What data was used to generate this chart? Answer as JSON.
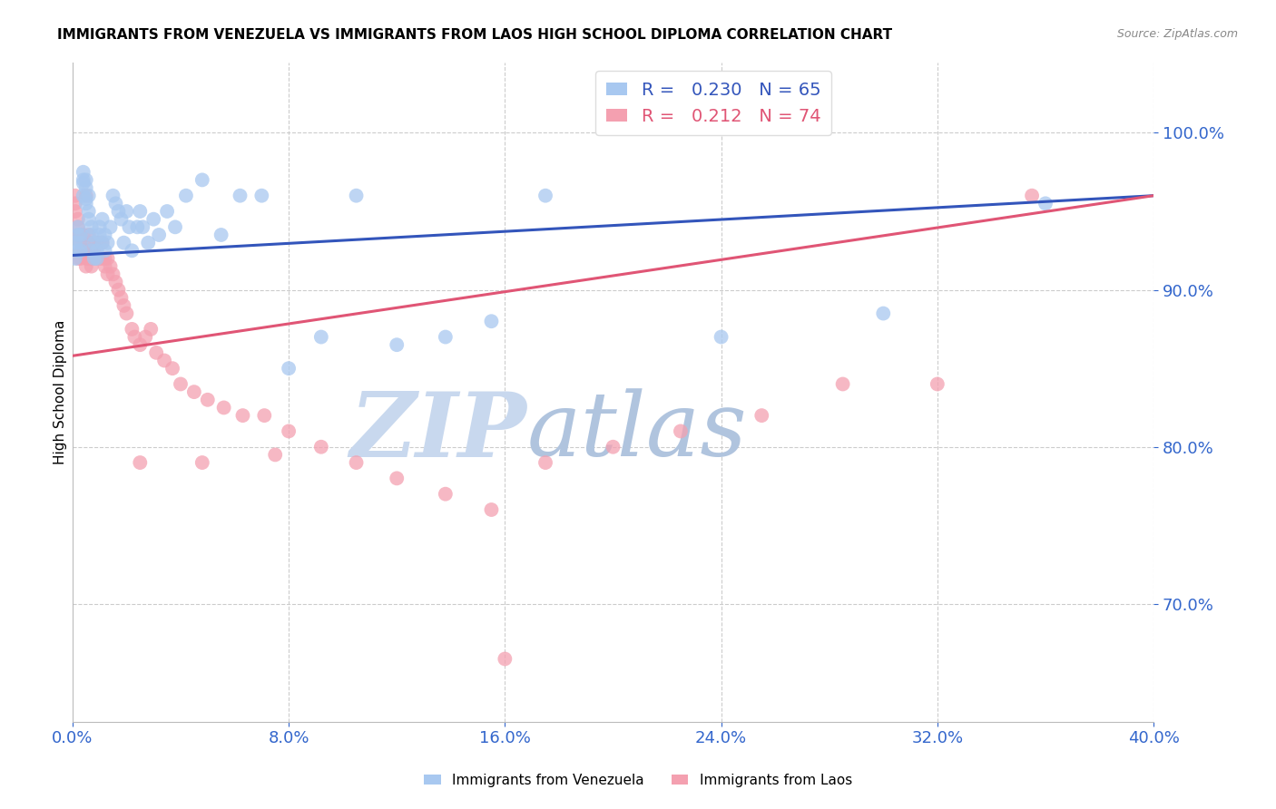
{
  "title": "IMMIGRANTS FROM VENEZUELA VS IMMIGRANTS FROM LAOS HIGH SCHOOL DIPLOMA CORRELATION CHART",
  "source": "Source: ZipAtlas.com",
  "ylabel": "High School Diploma",
  "legend_entries": [
    "Immigrants from Venezuela",
    "Immigrants from Laos"
  ],
  "r_venezuela": 0.23,
  "n_venezuela": 65,
  "r_laos": 0.212,
  "n_laos": 74,
  "xlim": [
    0.0,
    0.4
  ],
  "ylim": [
    0.625,
    1.045
  ],
  "xticks": [
    0.0,
    0.08,
    0.16,
    0.24,
    0.32,
    0.4
  ],
  "yticks_right": [
    0.7,
    0.8,
    0.9,
    1.0
  ],
  "color_venezuela": "#A8C8F0",
  "color_laos": "#F4A0B0",
  "line_color_venezuela": "#3355BB",
  "line_color_laos": "#E05575",
  "watermark_zip": "ZIP",
  "watermark_atlas": "atlas",
  "watermark_color_zip": "#C8D8EC",
  "watermark_color_atlas": "#B8CCDD",
  "title_fontsize": 11,
  "axis_label_fontsize": 10,
  "tick_fontsize": 11,
  "legend_fontsize": 14,
  "venezuela_x": [
    0.001,
    0.001,
    0.002,
    0.002,
    0.002,
    0.003,
    0.003,
    0.003,
    0.004,
    0.004,
    0.004,
    0.004,
    0.005,
    0.005,
    0.005,
    0.005,
    0.006,
    0.006,
    0.006,
    0.007,
    0.007,
    0.007,
    0.008,
    0.008,
    0.009,
    0.009,
    0.01,
    0.01,
    0.011,
    0.011,
    0.012,
    0.012,
    0.013,
    0.014,
    0.015,
    0.016,
    0.017,
    0.018,
    0.019,
    0.02,
    0.021,
    0.022,
    0.024,
    0.025,
    0.026,
    0.028,
    0.03,
    0.032,
    0.035,
    0.038,
    0.042,
    0.048,
    0.055,
    0.062,
    0.07,
    0.08,
    0.092,
    0.105,
    0.12,
    0.138,
    0.155,
    0.175,
    0.24,
    0.3,
    0.36
  ],
  "venezuela_y": [
    0.92,
    0.93,
    0.925,
    0.935,
    0.94,
    0.925,
    0.93,
    0.935,
    0.97,
    0.975,
    0.968,
    0.96,
    0.955,
    0.965,
    0.97,
    0.958,
    0.95,
    0.96,
    0.945,
    0.935,
    0.94,
    0.925,
    0.92,
    0.93,
    0.925,
    0.92,
    0.935,
    0.94,
    0.93,
    0.945,
    0.935,
    0.925,
    0.93,
    0.94,
    0.96,
    0.955,
    0.95,
    0.945,
    0.93,
    0.95,
    0.94,
    0.925,
    0.94,
    0.95,
    0.94,
    0.93,
    0.945,
    0.935,
    0.95,
    0.94,
    0.96,
    0.97,
    0.935,
    0.96,
    0.96,
    0.85,
    0.87,
    0.96,
    0.865,
    0.87,
    0.88,
    0.96,
    0.87,
    0.885,
    0.955
  ],
  "laos_x": [
    0.001,
    0.001,
    0.001,
    0.002,
    0.002,
    0.002,
    0.002,
    0.003,
    0.003,
    0.003,
    0.003,
    0.004,
    0.004,
    0.004,
    0.005,
    0.005,
    0.005,
    0.005,
    0.006,
    0.006,
    0.006,
    0.007,
    0.007,
    0.007,
    0.008,
    0.008,
    0.009,
    0.009,
    0.01,
    0.01,
    0.011,
    0.011,
    0.012,
    0.012,
    0.013,
    0.013,
    0.014,
    0.015,
    0.016,
    0.017,
    0.018,
    0.019,
    0.02,
    0.022,
    0.023,
    0.025,
    0.027,
    0.029,
    0.031,
    0.034,
    0.037,
    0.04,
    0.045,
    0.05,
    0.056,
    0.063,
    0.071,
    0.08,
    0.092,
    0.105,
    0.12,
    0.138,
    0.155,
    0.175,
    0.2,
    0.225,
    0.255,
    0.285,
    0.32,
    0.355,
    0.025,
    0.048,
    0.075,
    0.16
  ],
  "laos_y": [
    0.95,
    0.955,
    0.96,
    0.92,
    0.935,
    0.94,
    0.945,
    0.925,
    0.93,
    0.935,
    0.92,
    0.925,
    0.93,
    0.935,
    0.925,
    0.92,
    0.915,
    0.96,
    0.92,
    0.93,
    0.935,
    0.925,
    0.92,
    0.915,
    0.92,
    0.925,
    0.92,
    0.93,
    0.92,
    0.93,
    0.92,
    0.93,
    0.92,
    0.915,
    0.91,
    0.92,
    0.915,
    0.91,
    0.905,
    0.9,
    0.895,
    0.89,
    0.885,
    0.875,
    0.87,
    0.865,
    0.87,
    0.875,
    0.86,
    0.855,
    0.85,
    0.84,
    0.835,
    0.83,
    0.825,
    0.82,
    0.82,
    0.81,
    0.8,
    0.79,
    0.78,
    0.77,
    0.76,
    0.79,
    0.8,
    0.81,
    0.82,
    0.84,
    0.84,
    0.96,
    0.79,
    0.79,
    0.795,
    0.665
  ]
}
